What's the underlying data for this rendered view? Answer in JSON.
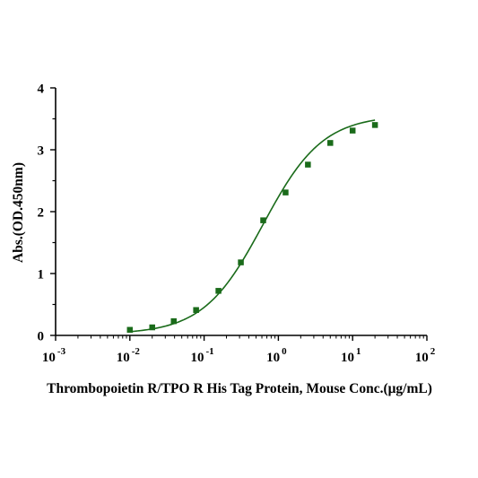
{
  "chart_data": {
    "type": "scatter",
    "xlabel": "Thrombopoietin R/TPO R His Tag Protein, Mouse Conc.(μg/mL)",
    "ylabel": "Abs.(OD.450nm)",
    "x_scale": "log",
    "xlim": [
      0.001,
      100
    ],
    "ylim": [
      0,
      4
    ],
    "x_ticks": [
      {
        "base": "10",
        "exp": "-3",
        "value": 0.001
      },
      {
        "base": "10",
        "exp": "-2",
        "value": 0.01
      },
      {
        "base": "10",
        "exp": "-1",
        "value": 0.1
      },
      {
        "base": "10",
        "exp": "0",
        "value": 1
      },
      {
        "base": "10",
        "exp": "1",
        "value": 10
      },
      {
        "base": "10",
        "exp": "2",
        "value": 100
      }
    ],
    "y_ticks": [
      "0",
      "1",
      "2",
      "3",
      "4"
    ],
    "grid": false,
    "legend": "none",
    "series": [
      {
        "x": [
          0.01,
          0.02,
          0.039,
          0.078,
          0.156,
          0.3125,
          0.625,
          1.25,
          2.5,
          5,
          10,
          20
        ],
        "y": [
          0.09,
          0.13,
          0.23,
          0.41,
          0.72,
          1.18,
          1.86,
          2.31,
          2.76,
          3.11,
          3.31,
          3.4
        ],
        "color": "#1a6b1a",
        "marker": "square",
        "fit": "4PL"
      }
    ]
  }
}
